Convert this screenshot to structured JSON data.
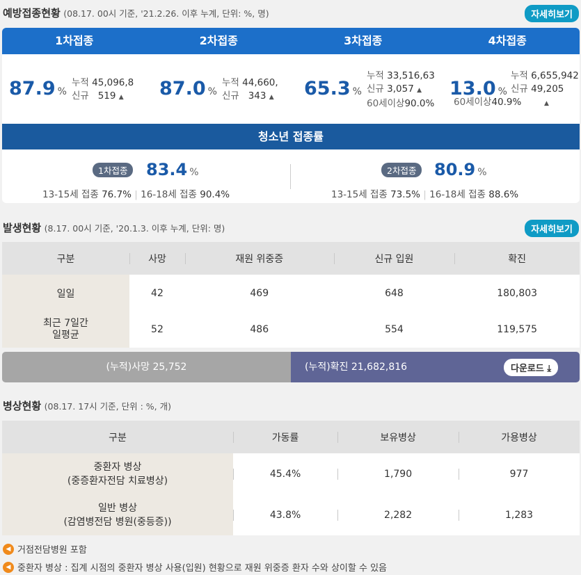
{
  "vaccination": {
    "title": "예방접종현황",
    "subtitle": "(08.17. 00시 기준, '21.2.26. 이후 누계, 단위: %, 명)",
    "more_label": "자세히보기",
    "doses": [
      {
        "label": "1차접종",
        "rate": "87.9",
        "unit": "%",
        "cum_label": "누적",
        "cum": "45,096,8",
        "new_label": "신규",
        "new": "519"
      },
      {
        "label": "2차접종",
        "rate": "87.0",
        "unit": "%",
        "cum_label": "누적",
        "cum": "44,660,",
        "new_label": "신규",
        "new": "343"
      },
      {
        "label": "3차접종",
        "rate": "65.3",
        "unit": "%",
        "cum_label": "누적",
        "cum": "33,516,63",
        "new_label": "신규",
        "new": "3,057",
        "senior_label": "60세이상",
        "senior": "90.0%"
      },
      {
        "label": "4차접종",
        "rate": "13.0",
        "unit": "%",
        "cum_label": "누적",
        "cum": "6,655,942",
        "new_label": "신규",
        "new": "49,205",
        "senior_label": "60세이상",
        "senior": "40.9%"
      }
    ],
    "teen": {
      "title": "청소년 접종률",
      "items": [
        {
          "label": "1차접종",
          "rate": "83.4",
          "unit": "%",
          "a_label": "13-15세",
          "a_k": "접종",
          "a": "76.7%",
          "b_label": "16-18세",
          "b_k": "접종",
          "b": "90.4%"
        },
        {
          "label": "2차접종",
          "rate": "80.9",
          "unit": "%",
          "a_label": "13-15세",
          "a_k": "접종",
          "a": "73.5%",
          "b_label": "16-18세",
          "b_k": "접종",
          "b": "88.6%"
        }
      ]
    }
  },
  "outbreak": {
    "title": "발생현황",
    "subtitle": "(8.17. 00시 기준, '20.1.3. 이후 누계, 단위: 명)",
    "more_label": "자세히보기",
    "headers": [
      "구분",
      "사망",
      "재원 위중증",
      "신규 입원",
      "확진"
    ],
    "rows": [
      [
        "일일",
        "42",
        "469",
        "648",
        "180,803"
      ],
      [
        "최근 7일간\n일평균",
        "52",
        "486",
        "554",
        "119,575"
      ]
    ],
    "cum_death": "(누적)사망  25,752",
    "cum_confirmed": "(누적)확진  21,682,816",
    "download_label": "다운로드"
  },
  "beds": {
    "title": "병상현황",
    "subtitle": "(08.17. 17시 기준, 단위 : %, 개)",
    "headers": [
      "구분",
      "가동률",
      "보유병상",
      "가용병상"
    ],
    "rows": [
      [
        "중환자 병상\n(중증환자전담 치료병상)",
        "45.4%",
        "1,790",
        "977"
      ],
      [
        "일반 병상\n(감염병전담 병원(중등증))",
        "43.8%",
        "2,282",
        "1,283"
      ]
    ]
  },
  "notes": [
    "거점전담병원 포함",
    "중환자 병상 : 집계 시점의 중환자 병상 사용(입원) 현황으로 재원 위중증 환자 수와 상이할 수 있음"
  ],
  "colors": {
    "header_blue": "#1c6fc9",
    "teen_blue": "#1a5a9e",
    "accent": "#0f9bc5",
    "confirmed_bar": "#5f6596"
  }
}
